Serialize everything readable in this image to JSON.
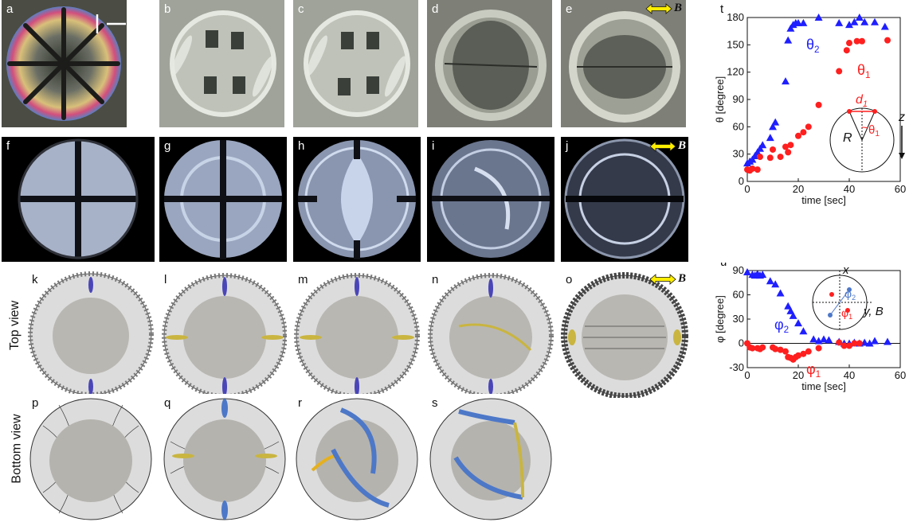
{
  "figure": {
    "panels": {
      "a": "a",
      "b": "b",
      "c": "c",
      "d": "d",
      "e": "e",
      "f": "f",
      "g": "g",
      "h": "h",
      "i": "i",
      "j": "j",
      "k": "k",
      "l": "l",
      "m": "m",
      "n": "n",
      "o": "o",
      "p": "p",
      "q": "q",
      "r": "r",
      "s": "s"
    },
    "field_symbol": "B",
    "row_labels": {
      "top": "Top view",
      "bottom": "Bottom view"
    },
    "colors": {
      "blue_series": "#1f1fff",
      "red_series": "#ff1f1f",
      "field_arrow": "#ffee00"
    }
  },
  "chart_data": [
    {
      "panel": "t",
      "type": "scatter",
      "xlabel": "time [sec]",
      "ylabel": "θ [degree]",
      "xlim": [
        0,
        60
      ],
      "ylim": [
        0,
        180
      ],
      "xticks": [
        0,
        20,
        40,
        60
      ],
      "yticks": [
        0,
        30,
        60,
        90,
        120,
        150,
        180
      ],
      "series": [
        {
          "name": "θ2",
          "marker": "triangle",
          "color": "#1f1fff",
          "points": [
            [
              0,
              20
            ],
            [
              1,
              22
            ],
            [
              2,
              24
            ],
            [
              3,
              28
            ],
            [
              4,
              32
            ],
            [
              5,
              36
            ],
            [
              6,
              40
            ],
            [
              9,
              48
            ],
            [
              10,
              60
            ],
            [
              11,
              65
            ],
            [
              15,
              110
            ],
            [
              16,
              155
            ],
            [
              17,
              168
            ],
            [
              18,
              172
            ],
            [
              19,
              174
            ],
            [
              20,
              174
            ],
            [
              22,
              174
            ],
            [
              28,
              180
            ],
            [
              36,
              174
            ],
            [
              40,
              172
            ],
            [
              42,
              175
            ],
            [
              44,
              180
            ],
            [
              46,
              175
            ],
            [
              50,
              175
            ],
            [
              54,
              170
            ]
          ]
        },
        {
          "name": "θ1",
          "marker": "circle",
          "color": "#ff1f1f",
          "points": [
            [
              0,
              13
            ],
            [
              1,
              12
            ],
            [
              2,
              14
            ],
            [
              4,
              13
            ],
            [
              5,
              27
            ],
            [
              9,
              26
            ],
            [
              10,
              35
            ],
            [
              13,
              27
            ],
            [
              15,
              38
            ],
            [
              16,
              32
            ],
            [
              17,
              40
            ],
            [
              20,
              50
            ],
            [
              22,
              54
            ],
            [
              24,
              60
            ],
            [
              28,
              84
            ],
            [
              36,
              121
            ],
            [
              38,
              70
            ],
            [
              39,
              144
            ],
            [
              40,
              152
            ],
            [
              43,
              154
            ],
            [
              45,
              154
            ],
            [
              55,
              155
            ]
          ]
        }
      ],
      "inset": {
        "d_label": "d",
        "d_sub": "1",
        "r_label": "R",
        "z_label": "z",
        "theta_label": "θ",
        "theta_sub": "1"
      }
    },
    {
      "panel": "u",
      "type": "scatter",
      "xlabel": "time [sec]",
      "ylabel": "φ [degree]",
      "xlim": [
        0,
        60
      ],
      "ylim": [
        -30,
        90
      ],
      "xticks": [
        0,
        20,
        40,
        60
      ],
      "yticks": [
        -30,
        0,
        30,
        60,
        90
      ],
      "series": [
        {
          "name": "φ2",
          "marker": "triangle",
          "color": "#1f1fff",
          "points": [
            [
              0,
              88
            ],
            [
              2,
              85
            ],
            [
              3,
              84
            ],
            [
              4,
              86
            ],
            [
              5,
              84
            ],
            [
              6,
              85
            ],
            [
              9,
              77
            ],
            [
              11,
              73
            ],
            [
              13,
              62
            ],
            [
              16,
              46
            ],
            [
              17,
              40
            ],
            [
              18,
              34
            ],
            [
              20,
              25
            ],
            [
              22,
              15
            ],
            [
              26,
              5
            ],
            [
              28,
              3
            ],
            [
              30,
              5
            ],
            [
              32,
              4
            ],
            [
              36,
              2
            ],
            [
              38,
              0
            ],
            [
              40,
              0
            ],
            [
              42,
              1
            ],
            [
              44,
              0
            ],
            [
              46,
              1
            ],
            [
              48,
              0
            ],
            [
              50,
              3
            ],
            [
              55,
              2
            ]
          ]
        },
        {
          "name": "φ1",
          "marker": "circle",
          "color": "#ff1f1f",
          "points": [
            [
              0,
              0
            ],
            [
              1,
              -5
            ],
            [
              2,
              -6
            ],
            [
              4,
              -6
            ],
            [
              5,
              -7
            ],
            [
              6,
              -5
            ],
            [
              10,
              -5
            ],
            [
              11,
              -7
            ],
            [
              13,
              -8
            ],
            [
              15,
              -10
            ],
            [
              16,
              -17
            ],
            [
              17,
              -18
            ],
            [
              18,
              -20
            ],
            [
              19,
              -17
            ],
            [
              20,
              -15
            ],
            [
              22,
              -13
            ],
            [
              24,
              -10
            ],
            [
              28,
              -6
            ],
            [
              36,
              1
            ],
            [
              38,
              -3
            ],
            [
              40,
              -3
            ],
            [
              42,
              0
            ],
            [
              44,
              0
            ]
          ]
        }
      ],
      "inset": {
        "x_label": "x",
        "yb_label": "y, B",
        "phi_label": "φ",
        "phi2_sub": "2",
        "phi1_sub": "1"
      }
    }
  ]
}
